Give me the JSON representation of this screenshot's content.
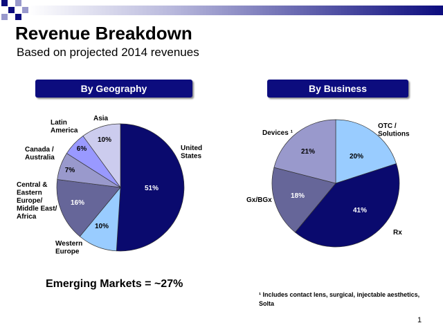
{
  "slide": {
    "title": "Revenue Breakdown",
    "subtitle": "Based on projected 2014 revenues",
    "emerging_markets": "Emerging Markets = ~27%",
    "footnote": "¹ Includes contact lens, surgical, injectable aesthetics, Solta",
    "page_number": "1"
  },
  "colors": {
    "header_bar": "#0c0c7e",
    "navy": "#0a0a6e",
    "light_blue": "#99ccff",
    "slate": "#666699",
    "lavender": "#9999cc",
    "light_lavender": "#ccccee",
    "periwinkle": "#9999ff"
  },
  "chart_data": [
    {
      "type": "pie",
      "title": "By Geography",
      "slices": [
        {
          "label": "United States",
          "value": 51,
          "value_label": "51%",
          "color": "#0a0a6e"
        },
        {
          "label": "Western Europe",
          "value": 10,
          "value_label": "10%",
          "color": "#99ccff"
        },
        {
          "label": "Central & Eastern Europe/ Middle East/ Africa",
          "value": 16,
          "value_label": "16%",
          "color": "#666699"
        },
        {
          "label": "Canada / Australia",
          "value": 7,
          "value_label": "7%",
          "color": "#9999cc"
        },
        {
          "label": "Latin America",
          "value": 6,
          "value_label": "6%",
          "color": "#9999ff"
        },
        {
          "label": "Asia",
          "value": 10,
          "value_label": "10%",
          "color": "#ccccee"
        }
      ]
    },
    {
      "type": "pie",
      "title": "By Business",
      "slices": [
        {
          "label": "OTC / Solutions",
          "value": 20,
          "value_label": "20%",
          "color": "#99ccff"
        },
        {
          "label": "Rx",
          "value": 41,
          "value_label": "41%",
          "color": "#0a0a6e"
        },
        {
          "label": "Gx/BGx",
          "value": 18,
          "value_label": "18%",
          "color": "#666699"
        },
        {
          "label": "Devices ¹",
          "value": 21,
          "value_label": "21%",
          "color": "#9999cc"
        }
      ]
    }
  ]
}
